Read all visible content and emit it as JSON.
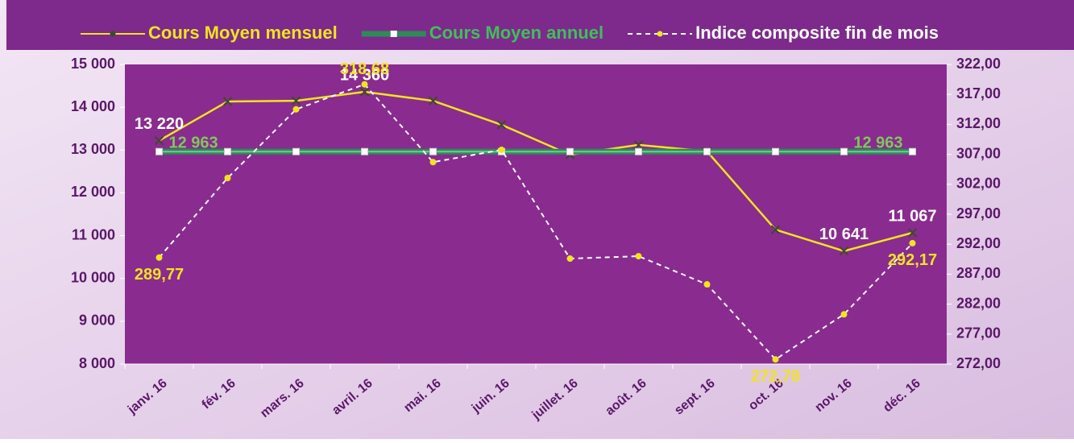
{
  "chart_data": {
    "type": "line",
    "categories": [
      "janv. 16",
      "fév. 16",
      "mars. 16",
      "avril. 16",
      "mai. 16",
      "juin. 16",
      "juillet. 16",
      "août. 16",
      "sept. 16",
      "oct. 16",
      "nov. 16",
      "déc. 16"
    ],
    "series": [
      {
        "name": "Cours Moyen mensuel",
        "color": "#f2e41c",
        "axis": "y",
        "values": [
          13220,
          14135,
          14150,
          14360,
          14150,
          13590,
          12890,
          13120,
          12970,
          11140,
          10641,
          11067
        ],
        "value_labels": [
          "13 220",
          null,
          null,
          "14 360",
          null,
          null,
          null,
          null,
          null,
          null,
          "10 641",
          "11 067"
        ]
      },
      {
        "name": "Cours Moyen annuel",
        "color": "#2e8b57",
        "axis": "y",
        "values": [
          12963,
          12963,
          12963,
          12963,
          12963,
          12963,
          12963,
          12963,
          12963,
          12963,
          12963,
          12963
        ],
        "value_labels": [
          "12 963",
          null,
          null,
          null,
          null,
          null,
          null,
          null,
          null,
          null,
          null,
          "12 963"
        ]
      },
      {
        "name": "Indice composite fin de mois",
        "color": "#ffffff",
        "axis": "y2",
        "values": [
          289.77,
          303.05,
          314.5,
          318.68,
          305.7,
          307.75,
          289.6,
          290.0,
          285.3,
          272.78,
          280.3,
          292.17
        ],
        "value_labels": [
          "289,77",
          null,
          null,
          "318,68",
          null,
          null,
          null,
          null,
          null,
          "272,78",
          null,
          "292,17"
        ]
      }
    ],
    "ylim": [
      8000,
      15000
    ],
    "yticks": [
      {
        "value": 8000,
        "label": "8 000"
      },
      {
        "value": 9000,
        "label": "9 000"
      },
      {
        "value": 10000,
        "label": "10 000"
      },
      {
        "value": 11000,
        "label": "11 000"
      },
      {
        "value": 12000,
        "label": "12 000"
      },
      {
        "value": 13000,
        "label": "13 000"
      },
      {
        "value": 14000,
        "label": "14 000"
      },
      {
        "value": 15000,
        "label": "15 000"
      }
    ],
    "y2lim": [
      272,
      322
    ],
    "y2ticks": [
      {
        "value": 272,
        "label": "272,00"
      },
      {
        "value": 277,
        "label": "277,00"
      },
      {
        "value": 282,
        "label": "282,00"
      },
      {
        "value": 287,
        "label": "287,00"
      },
      {
        "value": 292,
        "label": "292,00"
      },
      {
        "value": 297,
        "label": "297,00"
      },
      {
        "value": 302,
        "label": "302,00"
      },
      {
        "value": 307,
        "label": "307,00"
      },
      {
        "value": 312,
        "label": "312,00"
      },
      {
        "value": 317,
        "label": "317,00"
      },
      {
        "value": 322,
        "label": "322,00"
      }
    ]
  }
}
